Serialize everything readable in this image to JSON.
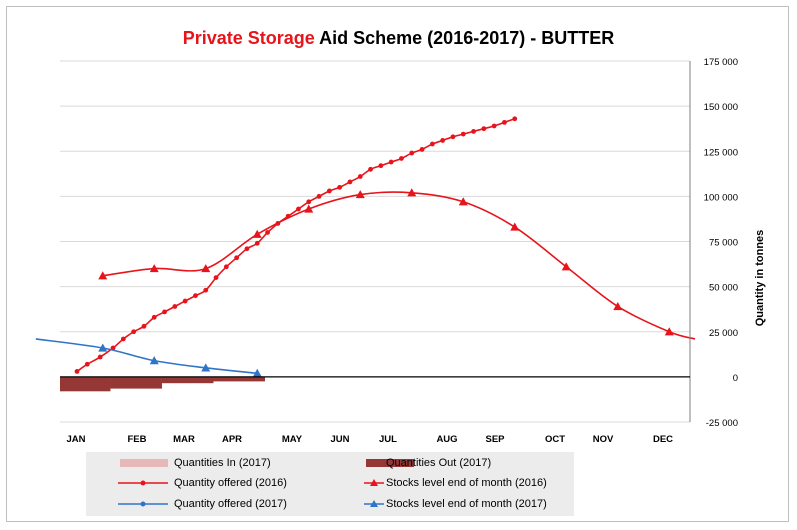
{
  "title": {
    "part_red": "Private Storage",
    "part_black": " Aid Scheme (2016-2017) - BUTTER"
  },
  "colors": {
    "red_series": "#e8141b",
    "blue_series": "#2e75c8",
    "qty_in": "#e6b9b8",
    "qty_out": "#953735",
    "grid": "#d9d9d9"
  },
  "chart_data": {
    "type": "line",
    "title": "Private Storage Aid Scheme (2016-2017) - BUTTER",
    "ylabel": "Quantity in tonnes",
    "ylim": [
      -25000,
      175000
    ],
    "y_ticks": [
      "175 000",
      "150 000",
      "125 000",
      "100 000",
      "75 000",
      "50 000",
      "25 000",
      "0",
      "-25 000"
    ],
    "y_tick_values": [
      175000,
      150000,
      125000,
      100000,
      75000,
      50000,
      25000,
      0,
      -25000
    ],
    "months": [
      "JAN",
      "FEB",
      "MAR",
      "APR",
      "MAY",
      "JUN",
      "JUL",
      "AUG",
      "SEP",
      "OCT",
      "NOV",
      "DEC"
    ],
    "series": [
      {
        "name": "Quantity offered (2016)",
        "color": "#e8141b",
        "marker": "circle",
        "x": [
          0,
          0.2,
          0.45,
          0.7,
          0.9,
          1.1,
          1.3,
          1.5,
          1.7,
          1.9,
          2.1,
          2.3,
          2.5,
          2.7,
          2.9,
          3.1,
          3.3,
          3.5,
          3.7,
          3.9,
          4.1,
          4.3,
          4.5,
          4.7,
          4.9,
          5.1,
          5.3,
          5.5,
          5.7,
          5.9,
          6.1,
          6.3,
          6.5,
          6.7,
          6.9,
          7.1,
          7.3,
          7.5,
          7.7,
          7.9,
          8.1,
          8.3,
          8.5
        ],
        "y": [
          3000,
          7000,
          11000,
          16000,
          21000,
          25000,
          28000,
          33000,
          36000,
          39000,
          42000,
          45000,
          48000,
          55000,
          61000,
          66000,
          71000,
          74000,
          80000,
          85000,
          89000,
          93000,
          97000,
          100000,
          103000,
          105000,
          108000,
          111000,
          115000,
          117000,
          119000,
          121000,
          124000,
          126000,
          129000,
          131000,
          133000,
          134500,
          136000,
          137500,
          139000,
          141000,
          143000
        ]
      },
      {
        "name": "Stocks level end of month (2016)",
        "color": "#e8141b",
        "marker": "triangle",
        "x": [
          0.5,
          1.5,
          2.5,
          3.5,
          4.5,
          5.5,
          6.5,
          7.5,
          8.5,
          9.5,
          10.5,
          11.5,
          12
        ],
        "y": [
          56000,
          60000,
          60000,
          79000,
          93000,
          101000,
          102000,
          97000,
          83000,
          61000,
          39000,
          25000,
          21000
        ]
      },
      {
        "name": "Quantity offered (2017)",
        "color": "#2e75c8",
        "marker": "circle",
        "x": [],
        "y": []
      },
      {
        "name": "Stocks level end of month (2017)",
        "color": "#2e75c8",
        "marker": "triangle",
        "x": [
          -0.8,
          0.5,
          1.5,
          2.5,
          3.5
        ],
        "y": [
          21000,
          16000,
          9000,
          5000,
          2000
        ]
      }
    ],
    "bars": [
      {
        "name": "Quantities In (2017)",
        "color": "#e6b9b8",
        "x": [],
        "y": []
      },
      {
        "name": "Quantities Out (2017)",
        "color": "#953735",
        "x": [
          0,
          1,
          2,
          3
        ],
        "y": [
          -8000,
          -6500,
          -3500,
          -2500
        ]
      }
    ],
    "grid": true,
    "legend_position": "bottom"
  }
}
